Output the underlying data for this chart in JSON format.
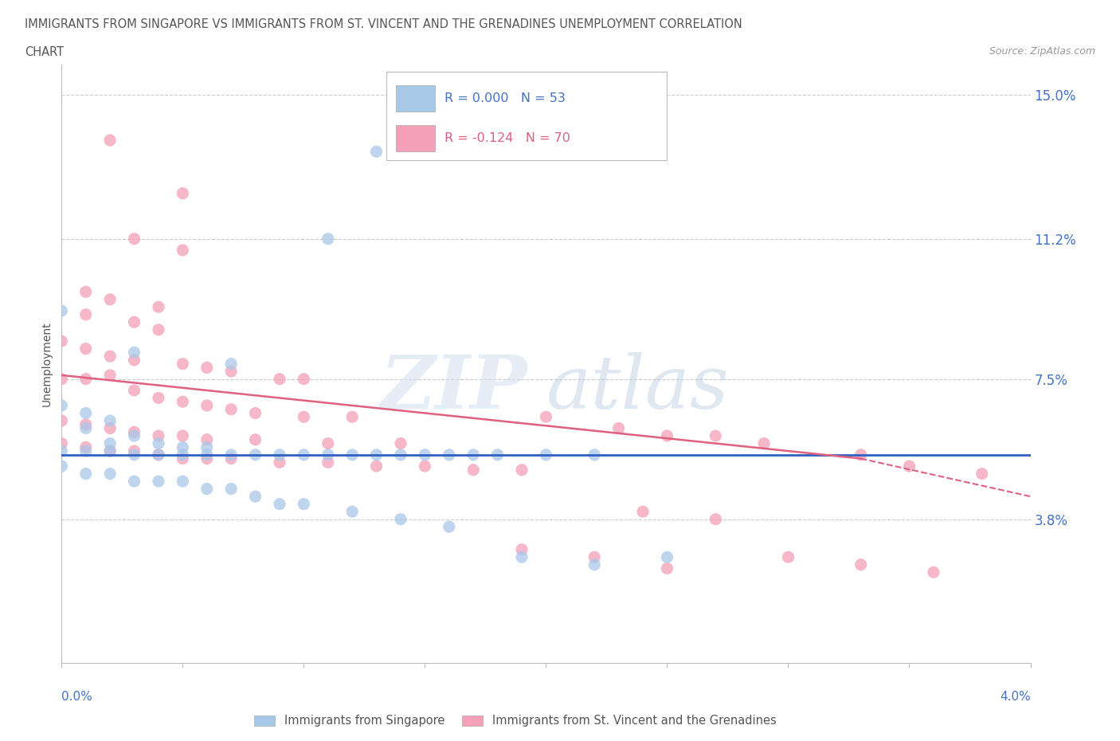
{
  "title_line1": "IMMIGRANTS FROM SINGAPORE VS IMMIGRANTS FROM ST. VINCENT AND THE GRENADINES UNEMPLOYMENT CORRELATION",
  "title_line2": "CHART",
  "source": "Source: ZipAtlas.com",
  "ylabel": "Unemployment",
  "y_ticks": [
    0.038,
    0.075,
    0.112,
    0.15
  ],
  "y_tick_labels": [
    "3.8%",
    "7.5%",
    "11.2%",
    "15.0%"
  ],
  "x_min": 0.0,
  "x_max": 0.04,
  "y_min": 0.0,
  "y_max": 0.158,
  "color_singapore": "#a8c8e8",
  "color_stvincent": "#f4a0b8",
  "color_singapore_line": "#3060c0",
  "color_stvincent_line": "#e06080",
  "watermark_zip": "ZIP",
  "watermark_atlas": "atlas",
  "sing_trend_y0": 0.055,
  "sing_trend_y1": 0.055,
  "stv_trend_y0": 0.076,
  "stv_trend_y1": 0.054,
  "stv_trend_dashed_y0": 0.054,
  "stv_trend_dashed_y1": 0.044,
  "stv_trend_solid_x1": 0.033
}
